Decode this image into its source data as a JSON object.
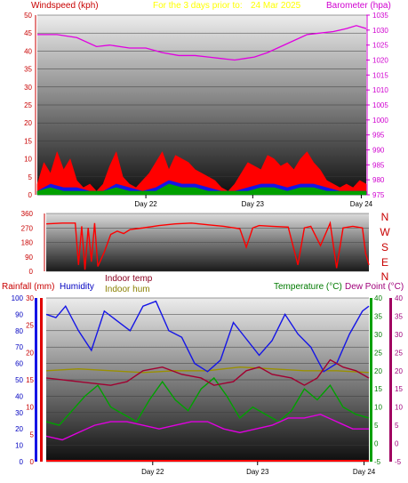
{
  "chart_data": [
    {
      "type": "line",
      "title_prefix": "For the 3 days prior to:",
      "title_date": "24 Mar 2025",
      "left_label": "Windspeed (kph)",
      "right_label": "Barometer (hpa)",
      "x_ticks": [
        "Day 22",
        "Day 23",
        "Day 24"
      ],
      "left_ticks": [
        "0",
        "5",
        "10",
        "15",
        "20",
        "25",
        "30",
        "35",
        "40",
        "45",
        "50"
      ],
      "right_ticks": [
        "975",
        "980",
        "985",
        "990",
        "995",
        "1000",
        "1005",
        "1010",
        "1015",
        "1020",
        "1025",
        "1030",
        "1035"
      ],
      "ylim_left": [
        0,
        50
      ],
      "ylim_right": [
        975,
        1035
      ],
      "series": [
        {
          "name": "Barometer",
          "color": "#e000e0",
          "x": [
            0,
            0.06,
            0.12,
            0.18,
            0.22,
            0.28,
            0.33,
            0.38,
            0.43,
            0.48,
            0.52,
            0.56,
            0.6,
            0.63,
            0.66,
            0.7,
            0.74,
            0.78,
            0.82,
            0.86,
            0.9,
            0.94,
            0.97,
            1.0
          ],
          "values": [
            1028.5,
            1028.5,
            1027.5,
            1024.5,
            1025.0,
            1024.0,
            1024.0,
            1022.5,
            1021.5,
            1021.5,
            1021.0,
            1020.5,
            1020.0,
            1020.5,
            1021.0,
            1022.5,
            1024.5,
            1026.5,
            1028.5,
            1029.0,
            1029.5,
            1030.5,
            1031.5,
            1030.5
          ]
        },
        {
          "name": "Wind gust",
          "color": "#ff0000",
          "x": [
            0,
            0.02,
            0.04,
            0.06,
            0.08,
            0.1,
            0.12,
            0.14,
            0.16,
            0.18,
            0.2,
            0.22,
            0.24,
            0.26,
            0.28,
            0.3,
            0.32,
            0.34,
            0.36,
            0.38,
            0.4,
            0.42,
            0.44,
            0.46,
            0.48,
            0.5,
            0.52,
            0.54,
            0.56,
            0.58,
            0.6,
            0.62,
            0.64,
            0.66,
            0.68,
            0.7,
            0.72,
            0.74,
            0.76,
            0.78,
            0.8,
            0.82,
            0.84,
            0.86,
            0.88,
            0.9,
            0.92,
            0.94,
            0.96,
            0.98,
            1.0
          ],
          "values": [
            3,
            9,
            6,
            12,
            7,
            10,
            4,
            2,
            3,
            1,
            3,
            8,
            12,
            5,
            3,
            2,
            4,
            6,
            9,
            12,
            7,
            11,
            10,
            9,
            7,
            6,
            5,
            4,
            2,
            1,
            3,
            6,
            9,
            8,
            7,
            11,
            10,
            8,
            9,
            7,
            10,
            12,
            9,
            7,
            4,
            3,
            2,
            3,
            2,
            4,
            3
          ]
        },
        {
          "name": "Wind speed",
          "color": "#1515e6",
          "x": [
            0,
            0.04,
            0.08,
            0.12,
            0.16,
            0.2,
            0.24,
            0.28,
            0.32,
            0.36,
            0.4,
            0.44,
            0.48,
            0.52,
            0.56,
            0.6,
            0.64,
            0.68,
            0.72,
            0.76,
            0.8,
            0.84,
            0.88,
            0.92,
            0.96,
            1.0
          ],
          "values": [
            1,
            3,
            2,
            2,
            1,
            1,
            3,
            2,
            1,
            2,
            4,
            3,
            3,
            2,
            1,
            1,
            2,
            3,
            3,
            2,
            3,
            3,
            2,
            1,
            1,
            1
          ]
        },
        {
          "name": "Wind avg",
          "color": "#00a000",
          "x": [
            0,
            0.04,
            0.08,
            0.12,
            0.16,
            0.2,
            0.24,
            0.28,
            0.32,
            0.36,
            0.4,
            0.44,
            0.48,
            0.52,
            0.56,
            0.6,
            0.64,
            0.68,
            0.72,
            0.76,
            0.8,
            0.84,
            0.88,
            0.92,
            0.96,
            1.0
          ],
          "values": [
            1,
            2,
            1,
            1,
            1,
            1,
            2,
            1,
            1,
            1,
            3,
            2,
            2,
            1,
            1,
            1,
            1,
            2,
            2,
            1,
            2,
            2,
            1,
            1,
            1,
            1
          ]
        }
      ]
    },
    {
      "type": "line",
      "title": "",
      "left_ticks": [
        "0",
        "90",
        "180",
        "270",
        "360"
      ],
      "right_ticks": [
        "N",
        "W",
        "S",
        "E",
        "N"
      ],
      "ylim": [
        0,
        360
      ],
      "series": [
        {
          "name": "Wind direction",
          "color": "#ff0000",
          "x": [
            0,
            0.05,
            0.09,
            0.1,
            0.11,
            0.12,
            0.13,
            0.14,
            0.15,
            0.16,
            0.18,
            0.2,
            0.22,
            0.24,
            0.26,
            0.3,
            0.35,
            0.4,
            0.45,
            0.5,
            0.55,
            0.6,
            0.62,
            0.64,
            0.66,
            0.7,
            0.75,
            0.78,
            0.8,
            0.82,
            0.85,
            0.88,
            0.9,
            0.92,
            0.95,
            0.98,
            0.99,
            1.0
          ],
          "values": [
            295,
            300,
            300,
            40,
            280,
            10,
            270,
            60,
            300,
            30,
            120,
            230,
            250,
            235,
            260,
            270,
            285,
            295,
            300,
            290,
            280,
            265,
            150,
            270,
            285,
            280,
            275,
            40,
            270,
            280,
            160,
            300,
            20,
            270,
            280,
            270,
            110,
            40
          ]
        }
      ]
    },
    {
      "type": "line",
      "title": "",
      "legend": [
        "Rainfall (mm)",
        "Humidity",
        "Indoor temp",
        "Indoor hum",
        "Temperature (°C)",
        "Dew Point (°C)"
      ],
      "left_ticks_hum": [
        "0",
        "10",
        "20",
        "30",
        "40",
        "50",
        "60",
        "70",
        "80",
        "90",
        "100"
      ],
      "left_ticks_rain": [
        "0",
        "5",
        "10",
        "15",
        "20",
        "25",
        "30"
      ],
      "right_ticks": [
        "-5",
        "0",
        "5",
        "10",
        "15",
        "20",
        "25",
        "30",
        "35",
        "40"
      ],
      "ylim_humidity": [
        0,
        100
      ],
      "ylim_temp": [
        -5,
        40
      ],
      "series": [
        {
          "name": "Humidity",
          "color": "#1515e6",
          "x": [
            0,
            0.03,
            0.06,
            0.1,
            0.14,
            0.18,
            0.22,
            0.26,
            0.3,
            0.34,
            0.38,
            0.42,
            0.46,
            0.5,
            0.54,
            0.58,
            0.62,
            0.66,
            0.7,
            0.74,
            0.78,
            0.82,
            0.86,
            0.9,
            0.94,
            0.98,
            1.0
          ],
          "values": [
            90,
            88,
            95,
            80,
            68,
            92,
            86,
            80,
            95,
            98,
            80,
            76,
            60,
            55,
            62,
            85,
            75,
            65,
            74,
            90,
            78,
            70,
            55,
            60,
            78,
            92,
            95
          ]
        },
        {
          "name": "Indoor temp",
          "color": "#a00030",
          "x": [
            0,
            0.1,
            0.2,
            0.25,
            0.3,
            0.36,
            0.42,
            0.48,
            0.52,
            0.58,
            0.62,
            0.66,
            0.7,
            0.76,
            0.8,
            0.84,
            0.88,
            0.92,
            0.96,
            1.0
          ],
          "values": [
            18,
            17,
            16,
            17,
            20,
            21,
            19,
            18,
            16,
            17,
            20,
            21,
            19,
            18,
            16,
            18,
            23,
            21,
            20,
            18
          ]
        },
        {
          "name": "Indoor hum",
          "color": "#9a9000",
          "x": [
            0,
            0.1,
            0.2,
            0.3,
            0.4,
            0.5,
            0.6,
            0.7,
            0.8,
            0.9,
            1.0
          ],
          "values": [
            20,
            20.5,
            20,
            19.5,
            20,
            20,
            21,
            20.5,
            20,
            20,
            19.5
          ]
        },
        {
          "name": "Temperature",
          "color": "#00a000",
          "x": [
            0,
            0.04,
            0.08,
            0.12,
            0.16,
            0.2,
            0.24,
            0.28,
            0.32,
            0.36,
            0.4,
            0.44,
            0.48,
            0.52,
            0.56,
            0.6,
            0.64,
            0.68,
            0.72,
            0.76,
            0.8,
            0.84,
            0.88,
            0.92,
            0.96,
            1.0
          ],
          "values": [
            6,
            5,
            9,
            13,
            16,
            10,
            8,
            6,
            12,
            17,
            12,
            9,
            15,
            18,
            13,
            7,
            10,
            8,
            6,
            9,
            15,
            12,
            16,
            10,
            8,
            7
          ]
        },
        {
          "name": "Dew Point",
          "color": "#e000e0",
          "x": [
            0,
            0.05,
            0.1,
            0.15,
            0.2,
            0.25,
            0.3,
            0.35,
            0.4,
            0.45,
            0.5,
            0.55,
            0.6,
            0.65,
            0.7,
            0.75,
            0.8,
            0.85,
            0.9,
            0.95,
            1.0
          ],
          "values": [
            2,
            1,
            3,
            5,
            6,
            6,
            5,
            4,
            5,
            6,
            6,
            4,
            3,
            4,
            5,
            7,
            7,
            8,
            6,
            4,
            4
          ]
        },
        {
          "name": "Rainfall",
          "color": "#ff0000",
          "x": [
            0,
            1
          ],
          "values": [
            0,
            0
          ]
        }
      ]
    }
  ]
}
